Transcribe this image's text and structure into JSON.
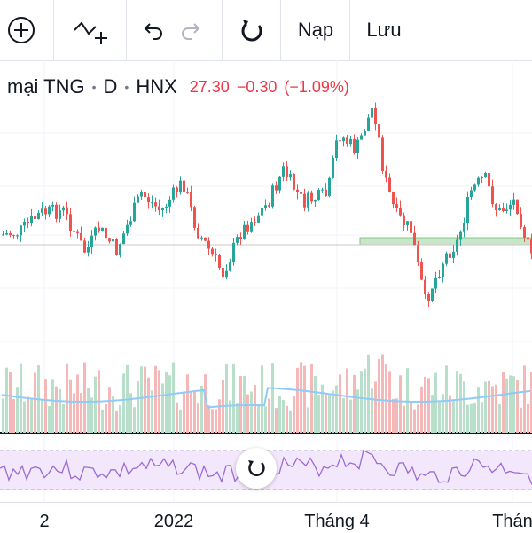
{
  "toolbar": {
    "add_icon": "plus-circle-icon",
    "indicator_icon": "indicator-plus-icon",
    "undo_icon": "undo-icon",
    "redo_icon": "redo-icon",
    "replay_icon": "replay-icon",
    "load_label": "Nạp",
    "save_label": "Lưu"
  },
  "header": {
    "symbol": "mại TNG",
    "interval": "D",
    "exchange": "HNX",
    "price": "27.30",
    "change": "−0.30",
    "change_pct": "(−1.09%)",
    "price_color": "#f23645"
  },
  "chart_data": {
    "type": "candlestick",
    "up_color": "#26a69a",
    "down_color": "#ef5350",
    "x_tick_labels": [
      "2",
      "2022",
      "Tháng 4",
      "Thán"
    ],
    "reset_icon": "reset-icon"
  },
  "xaxis": {
    "labels": [
      "2",
      "2022",
      "Tháng 4",
      "Thán"
    ]
  }
}
